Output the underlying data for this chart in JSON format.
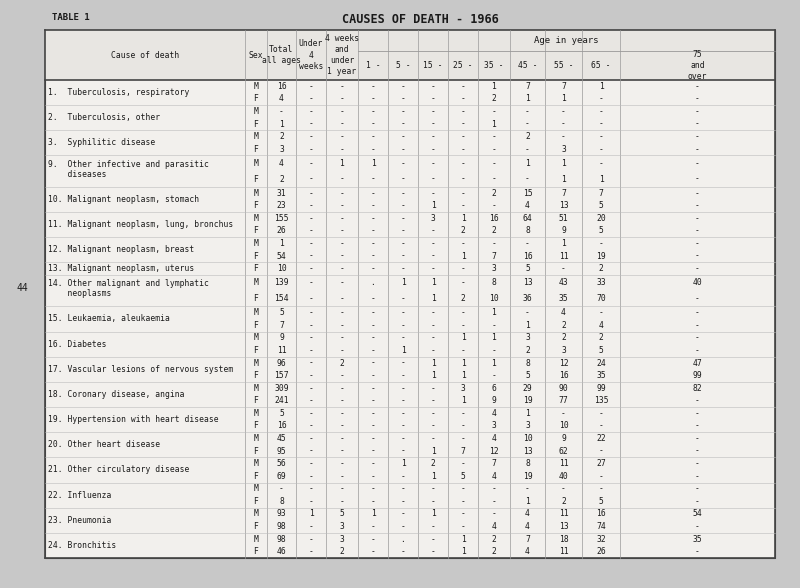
{
  "title": "CAUSES OF DEATH - 1966",
  "table_label": "TABLE 1",
  "page_num": "44",
  "age_header": "Age in years",
  "rows": [
    {
      "cause": "1.  Tuberculosis, respiratory",
      "sex": [
        "M",
        "F"
      ],
      "vals": [
        [
          "16",
          "-",
          "-",
          "-",
          "-",
          "-",
          "-",
          "1",
          "7",
          "7",
          "1"
        ],
        [
          "4",
          "-",
          "-",
          "-",
          "-",
          "-",
          "-",
          "2",
          "1",
          "1",
          "-"
        ]
      ]
    },
    {
      "cause": "2.  Tuberculosis, other",
      "sex": [
        "M",
        "F"
      ],
      "vals": [
        [
          "-",
          "-",
          "-",
          "-",
          "-",
          "-",
          "-",
          "-",
          "-",
          "-",
          "-"
        ],
        [
          "1",
          "-",
          "-",
          "-",
          "-",
          "-",
          "-",
          "1",
          "-",
          "-",
          "-"
        ]
      ]
    },
    {
      "cause": "3.  Syphilitic disease",
      "sex": [
        "M",
        "F"
      ],
      "vals": [
        [
          "2",
          "-",
          "-",
          "-",
          "-",
          "-",
          "-",
          "-",
          "2",
          "-",
          "-"
        ],
        [
          "3",
          "-",
          "-",
          "-",
          "-",
          "-",
          "-",
          "-",
          "-",
          "3",
          "-"
        ]
      ]
    },
    {
      "cause": "9.  Other infective and parasitic",
      "sex": [
        "M",
        "F"
      ],
      "vals": [
        [
          "4",
          "-",
          "1",
          "1",
          "-",
          "-",
          "-",
          "-",
          "1",
          "1",
          "-",
          "-"
        ],
        [
          "2",
          "-",
          "-",
          "-",
          "-",
          "-",
          "-",
          "-",
          "-",
          "1",
          "1",
          "-"
        ]
      ],
      "cause2": "    diseases"
    },
    {
      "cause": "10. Malignant neoplasm, stomach",
      "sex": [
        "M",
        "F"
      ],
      "vals": [
        [
          "31",
          "-",
          "-",
          "-",
          "-",
          "-",
          "-",
          "2",
          "15",
          "7",
          "7"
        ],
        [
          "23",
          "-",
          "-",
          "-",
          "-",
          "1",
          "-",
          "-",
          "4",
          "13",
          "5"
        ]
      ]
    },
    {
      "cause": "11. Malignant neoplasm, lung, bronchus",
      "sex": [
        "M",
        "F"
      ],
      "vals": [
        [
          "155",
          "-",
          "-",
          "-",
          "-",
          "3",
          "1",
          "16",
          "64",
          "51",
          "20"
        ],
        [
          "26",
          "-",
          "-",
          "-",
          "-",
          "-",
          "2",
          "2",
          "8",
          "9",
          "5"
        ]
      ]
    },
    {
      "cause": "12. Malignant neoplasm, breast",
      "sex": [
        "M",
        "F"
      ],
      "vals": [
        [
          "1",
          "-",
          "-",
          "-",
          "-",
          "-",
          "-",
          "-",
          "-",
          "1",
          "-"
        ],
        [
          "54",
          "-",
          "-",
          "-",
          "-",
          "-",
          "1",
          "7",
          "16",
          "11",
          "19"
        ]
      ]
    },
    {
      "cause": "13. Malignant neoplasm, uterus",
      "sex": [
        "F"
      ],
      "vals": [
        [
          "10",
          "-",
          "-",
          "-",
          "-",
          "-",
          "-",
          "3",
          "5",
          "-",
          "2"
        ]
      ]
    },
    {
      "cause": "14. Other malignant and lymphatic",
      "sex": [
        "M",
        "F"
      ],
      "vals": [
        [
          "139",
          "-",
          "-",
          ".",
          "1",
          "1",
          "-",
          "8",
          "13",
          "43",
          "33",
          "40"
        ],
        [
          "154",
          "-",
          "-",
          "-",
          "-",
          "1",
          "2",
          "10",
          "36",
          "35",
          "70"
        ]
      ],
      "cause2": "    neoplasms"
    },
    {
      "cause": "15. Leukaemia, aleukaemia",
      "sex": [
        "M",
        "F"
      ],
      "vals": [
        [
          "5",
          "-",
          "-",
          "-",
          "-",
          "-",
          "-",
          "1",
          "-",
          "4"
        ],
        [
          "7",
          "-",
          "-",
          "-",
          "-",
          "-",
          "-",
          "-",
          "1",
          "2",
          "4"
        ]
      ]
    },
    {
      "cause": "16. Diabetes",
      "sex": [
        "M",
        "F"
      ],
      "vals": [
        [
          "9",
          "-",
          "-",
          "-",
          "-",
          "-",
          "1",
          "1",
          "3",
          "2",
          "2"
        ],
        [
          "11",
          "-",
          "-",
          "-",
          "1",
          "-",
          "-",
          "-",
          "2",
          "3",
          "5"
        ]
      ]
    },
    {
      "cause": "17. Vascular lesions of nervous system",
      "sex": [
        "M",
        "F"
      ],
      "vals": [
        [
          "96",
          "-",
          "2",
          "-",
          "-",
          "1",
          "1",
          "1",
          "8",
          "12",
          "24",
          "47"
        ],
        [
          "157",
          "-",
          "-",
          "-",
          "-",
          "1",
          "1",
          "-",
          "5",
          "16",
          "35",
          "99"
        ]
      ]
    },
    {
      "cause": "18. Coronary disease, angina",
      "sex": [
        "M",
        "F"
      ],
      "vals": [
        [
          "309",
          "-",
          "-",
          "-",
          "-",
          "-",
          "3",
          "6",
          "29",
          "90",
          "99",
          "82"
        ],
        [
          "241",
          "-",
          "-",
          "-",
          "-",
          "-",
          "1",
          "9",
          "19",
          "77",
          "135"
        ]
      ]
    },
    {
      "cause": "19. Hypertension with heart disease",
      "sex": [
        "M",
        "F"
      ],
      "vals": [
        [
          "5",
          "-",
          "-",
          "-",
          "-",
          "-",
          "-",
          "4",
          "1",
          "-"
        ],
        [
          "16",
          "-",
          "-",
          "-",
          "-",
          "-",
          "-",
          "3",
          "3",
          "10"
        ]
      ]
    },
    {
      "cause": "20. Other heart disease",
      "sex": [
        "M",
        "F"
      ],
      "vals": [
        [
          "45",
          "-",
          "-",
          "-",
          "-",
          "-",
          "-",
          "4",
          "10",
          "9",
          "22"
        ],
        [
          "95",
          "-",
          "-",
          "-",
          "-",
          "1",
          "7",
          "12",
          "13",
          "62"
        ]
      ]
    },
    {
      "cause": "21. Other circulatory disease",
      "sex": [
        "M",
        "F"
      ],
      "vals": [
        [
          "56",
          "-",
          "-",
          "-",
          "1",
          "2",
          "-",
          "7",
          "8",
          "11",
          "27"
        ],
        [
          "69",
          "-",
          "-",
          "-",
          "-",
          "1",
          "5",
          "4",
          "19",
          "40"
        ]
      ]
    },
    {
      "cause": "22. Influenza",
      "sex": [
        "M",
        "F"
      ],
      "vals": [
        [
          "-",
          "-",
          "-",
          "-",
          "-",
          "-",
          "-",
          "-",
          "-",
          "-",
          "-"
        ],
        [
          "8",
          "-",
          "-",
          "-",
          "-",
          "-",
          "-",
          "-",
          "1",
          "2",
          "5"
        ]
      ]
    },
    {
      "cause": "23. Pneumonia",
      "sex": [
        "M",
        "F"
      ],
      "vals": [
        [
          "93",
          "1",
          "5",
          "1",
          "-",
          "1",
          "-",
          "-",
          "4",
          "11",
          "16",
          "54"
        ],
        [
          "98",
          "-",
          "3",
          "-",
          "-",
          "-",
          "-",
          "4",
          "4",
          "13",
          "74"
        ]
      ]
    },
    {
      "cause": "24. Bronchitis",
      "sex": [
        "M",
        "F"
      ],
      "vals": [
        [
          "98",
          "-",
          "3",
          "-",
          ".",
          "-",
          "1",
          "2",
          "7",
          "18",
          "32",
          "35"
        ],
        [
          "46",
          "-",
          "2",
          "-",
          "-",
          "-",
          "1",
          "2",
          "4",
          "11",
          "26"
        ]
      ]
    }
  ],
  "bg_color": "#c8c8c8",
  "table_bg": "#f2f0ed",
  "text_color": "#1a1a1a",
  "font_size": 5.8,
  "header_font_size": 5.8
}
